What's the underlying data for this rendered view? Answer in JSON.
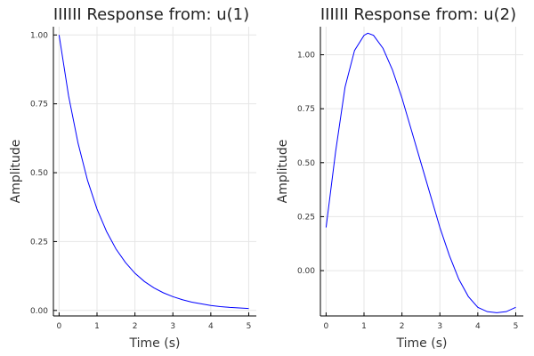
{
  "chart_data": [
    {
      "type": "line",
      "title": "IIIIII Response from: u(1)",
      "xlabel": "Time (s)",
      "ylabel": "Amplitude",
      "xlim": [
        -0.15,
        5.2
      ],
      "ylim": [
        -0.02,
        1.03
      ],
      "xticks": [
        0,
        1,
        2,
        3,
        4,
        5
      ],
      "xtick_labels": [
        "0",
        "1",
        "2",
        "3",
        "4",
        "5"
      ],
      "yticks": [
        0.0,
        0.25,
        0.5,
        0.75,
        1.0
      ],
      "ytick_labels": [
        "0.00",
        "0.25",
        "0.50",
        "0.75",
        "1.00"
      ],
      "grid": true,
      "color": "#0000ff",
      "series": [
        {
          "x": [
            0,
            0.25,
            0.5,
            0.75,
            1.0,
            1.25,
            1.5,
            1.75,
            2.0,
            2.25,
            2.5,
            2.75,
            3.0,
            3.25,
            3.5,
            3.75,
            4.0,
            4.25,
            4.5,
            4.75,
            5.0
          ],
          "y": [
            1.0,
            0.779,
            0.607,
            0.472,
            0.368,
            0.287,
            0.223,
            0.174,
            0.135,
            0.105,
            0.082,
            0.064,
            0.05,
            0.039,
            0.03,
            0.024,
            0.018,
            0.014,
            0.011,
            0.009,
            0.007
          ]
        }
      ]
    },
    {
      "type": "line",
      "title": "IIIIII Response from: u(2)",
      "xlabel": "Time (s)",
      "ylabel": "Amplitude",
      "xlim": [
        -0.15,
        5.2
      ],
      "ylim": [
        -0.21,
        1.13
      ],
      "xticks": [
        0,
        1,
        2,
        3,
        4,
        5
      ],
      "xtick_labels": [
        "0",
        "1",
        "2",
        "3",
        "4",
        "5"
      ],
      "yticks": [
        0.0,
        0.25,
        0.5,
        0.75,
        1.0
      ],
      "ytick_labels": [
        "0.00",
        "0.25",
        "0.50",
        "0.75",
        "1.00"
      ],
      "grid": true,
      "color": "#0000ff",
      "series": [
        {
          "x": [
            0,
            0.25,
            0.5,
            0.75,
            1.0,
            1.1,
            1.25,
            1.5,
            1.75,
            2.0,
            2.25,
            2.5,
            2.75,
            3.0,
            3.25,
            3.5,
            3.75,
            4.0,
            4.25,
            4.5,
            4.75,
            5.0
          ],
          "y": [
            0.2,
            0.55,
            0.85,
            1.02,
            1.09,
            1.1,
            1.09,
            1.03,
            0.93,
            0.8,
            0.65,
            0.5,
            0.35,
            0.2,
            0.07,
            -0.04,
            -0.12,
            -0.17,
            -0.19,
            -0.195,
            -0.19,
            -0.17
          ]
        }
      ]
    }
  ]
}
